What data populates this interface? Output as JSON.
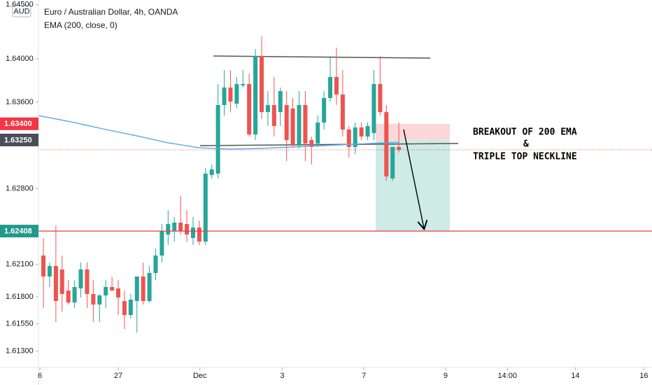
{
  "header": {
    "symbol": "Euro / Australian Dollar, 4h, OANDA",
    "currency": "AUD"
  },
  "chart_data": {
    "type": "candlestick",
    "xlim": [
      -0.79,
      97.6
    ],
    "xticks": [
      {
        "value": -0.56,
        "label": "6"
      },
      {
        "value": 12,
        "label": "27"
      },
      {
        "value": 25.1,
        "label": "Dec"
      },
      {
        "value": 38.3,
        "label": "3"
      },
      {
        "value": 51.4,
        "label": "7"
      },
      {
        "value": 64.5,
        "label": "9"
      },
      {
        "value": 74.4,
        "label": "14:00"
      },
      {
        "value": 85.3,
        "label": "14"
      },
      {
        "value": 96.3,
        "label": "16"
      }
    ],
    "ylim": [
      1.61147,
      1.64544
    ],
    "yticks": [
      {
        "value": 1.645,
        "label": "1.64500"
      },
      {
        "value": 1.64,
        "label": "1.64000"
      },
      {
        "value": 1.636,
        "label": "1.63600"
      },
      {
        "value": 1.628,
        "label": "1.62800"
      },
      {
        "value": 1.621,
        "label": "1.62100"
      },
      {
        "value": 1.618,
        "label": "1.61800"
      },
      {
        "value": 1.6155,
        "label": "1.61550"
      },
      {
        "value": 1.613,
        "label": "1.61300"
      }
    ],
    "up_color": "#26a69a",
    "down_color": "#ef5350",
    "open": [
      1.62182,
      1.61988,
      1.62085,
      1.62053,
      1.61858,
      1.61748,
      1.61878,
      1.62053,
      1.61826,
      1.61729,
      1.61813,
      1.61891,
      1.61878,
      1.61761,
      1.61632,
      1.61761,
      1.61988,
      1.61761,
      1.6202,
      1.62182,
      1.62376,
      1.62408,
      1.62486,
      1.62473,
      1.62344,
      1.62441,
      1.62311,
      1.62926,
      1.62939,
      1.63573,
      1.63735,
      1.63586,
      1.63754,
      1.63767,
      1.63301,
      1.64026,
      1.63508,
      1.63573,
      1.63508,
      1.63573,
      1.63541,
      1.63198,
      1.63573,
      1.63249,
      1.63217,
      1.63411,
      1.63638,
      1.63832,
      1.6367,
      1.63347,
      1.63185,
      1.63366,
      1.63282,
      1.63314,
      1.63767,
      1.63508,
      1.62894,
      1.63185
    ],
    "high": [
      1.62344,
      1.62117,
      1.6246,
      1.62182,
      1.61955,
      1.61955,
      1.62117,
      1.62117,
      1.61955,
      1.61826,
      1.61955,
      1.61988,
      1.61955,
      1.61858,
      1.61826,
      1.61988,
      1.62117,
      1.62085,
      1.62247,
      1.62473,
      1.62602,
      1.62538,
      1.62732,
      1.62602,
      1.62538,
      1.62505,
      1.62991,
      1.63023,
      1.63767,
      1.63896,
      1.63896,
      1.63832,
      1.63896,
      1.63864,
      1.64091,
      1.64207,
      1.63702,
      1.63832,
      1.63735,
      1.63702,
      1.63638,
      1.63702,
      1.63702,
      1.63282,
      1.63476,
      1.63702,
      1.64026,
      1.64104,
      1.63896,
      1.63379,
      1.63411,
      1.63411,
      1.63411,
      1.63896,
      1.64026,
      1.63573,
      1.63185,
      1.63411
    ],
    "low": [
      1.61697,
      1.61891,
      1.61567,
      1.61664,
      1.61729,
      1.61697,
      1.61794,
      1.61697,
      1.61567,
      1.61567,
      1.61697,
      1.61858,
      1.61632,
      1.61503,
      1.616,
      1.6147,
      1.61729,
      1.61748,
      1.61955,
      1.62117,
      1.62279,
      1.62311,
      1.62376,
      1.62311,
      1.62279,
      1.62279,
      1.62279,
      1.62894,
      1.62894,
      1.63476,
      1.63508,
      1.63541,
      1.63735,
      1.63282,
      1.63249,
      1.63444,
      1.63379,
      1.63282,
      1.63379,
      1.63055,
      1.63185,
      1.63172,
      1.63055,
      1.63023,
      1.63185,
      1.63347,
      1.63605,
      1.63573,
      1.63282,
      1.63088,
      1.6312,
      1.63249,
      1.63249,
      1.63249,
      1.63476,
      1.62874,
      1.62874,
      1.63133
    ],
    "close": [
      1.61988,
      1.62085,
      1.61761,
      1.61826,
      1.61748,
      1.61891,
      1.62053,
      1.61826,
      1.61729,
      1.61813,
      1.61891,
      1.61858,
      1.61794,
      1.61632,
      1.61774,
      1.61988,
      1.61761,
      1.6202,
      1.62182,
      1.62408,
      1.62473,
      1.62486,
      1.62408,
      1.62376,
      1.62441,
      1.62311,
      1.62939,
      1.62978,
      1.63573,
      1.63735,
      1.63605,
      1.63767,
      1.63767,
      1.63301,
      1.64026,
      1.63508,
      1.63573,
      1.63379,
      1.63702,
      1.63249,
      1.63198,
      1.63573,
      1.63217,
      1.63185,
      1.63411,
      1.63638,
      1.63832,
      1.6367,
      1.63347,
      1.63185,
      1.63366,
      1.63282,
      1.63379,
      1.63767,
      1.63508,
      1.62913,
      1.63185,
      1.63159
    ],
    "ema": {
      "name": "EMA (200, close, 0)",
      "color": "#5aa9e6",
      "x": [
        -0.79,
        5,
        10,
        15,
        20,
        25,
        30,
        35,
        40,
        45,
        50,
        57
      ],
      "values": [
        1.63476,
        1.63411,
        1.63347,
        1.63288,
        1.63224,
        1.63178,
        1.63165,
        1.63172,
        1.63185,
        1.63198,
        1.63211,
        1.6323
      ]
    },
    "last_price_line": true,
    "price_badges": [
      {
        "value": 1.634,
        "label": "1.63400",
        "color": "#f23645"
      },
      {
        "value": 1.6325,
        "label": "1.63250",
        "color": "#4a4e5a"
      },
      {
        "value": 1.62408,
        "label": "1.62408",
        "color": "#22998a",
        "line_color": "#f23645"
      }
    ],
    "annotation": [
      "BREAKOUT OF 200 EMA",
      "&",
      "TRIPLE TOP NECKLINE"
    ]
  }
}
